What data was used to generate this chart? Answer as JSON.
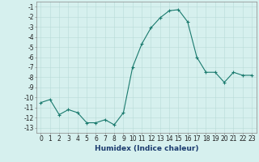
{
  "x": [
    0,
    1,
    2,
    3,
    4,
    5,
    6,
    7,
    8,
    9,
    10,
    11,
    12,
    13,
    14,
    15,
    16,
    17,
    18,
    19,
    20,
    21,
    22,
    23
  ],
  "y": [
    -10.5,
    -10.2,
    -11.7,
    -11.2,
    -11.5,
    -12.5,
    -12.5,
    -12.2,
    -12.7,
    -11.5,
    -7.0,
    -4.7,
    -3.1,
    -2.1,
    -1.4,
    -1.3,
    -2.5,
    -6.0,
    -7.5,
    -7.5,
    -8.5,
    -7.5,
    -7.8,
    -7.8
  ],
  "line_color": "#1a7a6e",
  "marker": "+",
  "markersize": 3,
  "linewidth": 0.8,
  "bg_color": "#d6f0ee",
  "grid_color": "#b8dbd8",
  "xlabel": "Humidex (Indice chaleur)",
  "ylabel": "",
  "xlim": [
    -0.5,
    23.5
  ],
  "ylim": [
    -13.5,
    -0.5
  ],
  "yticks": [
    -1,
    -2,
    -3,
    -4,
    -5,
    -6,
    -7,
    -8,
    -9,
    -10,
    -11,
    -12,
    -13
  ],
  "xticks": [
    0,
    1,
    2,
    3,
    4,
    5,
    6,
    7,
    8,
    9,
    10,
    11,
    12,
    13,
    14,
    15,
    16,
    17,
    18,
    19,
    20,
    21,
    22,
    23
  ],
  "xlabel_fontsize": 6.5,
  "tick_fontsize": 5.5,
  "spine_color": "#888888"
}
